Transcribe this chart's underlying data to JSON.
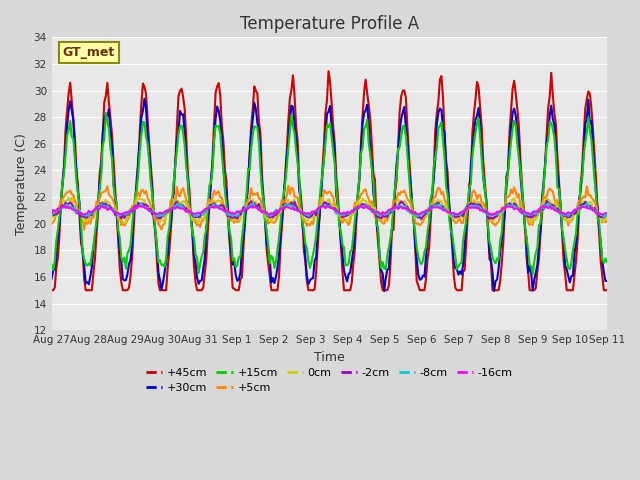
{
  "title": "Temperature Profile A",
  "xlabel": "Time",
  "ylabel": "Temperature (C)",
  "ylim": [
    12,
    34
  ],
  "yticks": [
    12,
    14,
    16,
    18,
    20,
    22,
    24,
    26,
    28,
    30,
    32,
    34
  ],
  "date_labels": [
    "Aug 27",
    "Aug 28",
    "Aug 29",
    "Aug 30",
    "Aug 31",
    "Sep 1",
    "Sep 2",
    "Sep 3",
    "Sep 4",
    "Sep 5",
    "Sep 6",
    "Sep 7",
    "Sep 8",
    "Sep 9",
    "Sep 10",
    "Sep 11"
  ],
  "n_days": 15,
  "series": {
    "+45cm": {
      "color": "#cc0000",
      "lw": 1.5
    },
    "+30cm": {
      "color": "#0000cc",
      "lw": 1.5
    },
    "+15cm": {
      "color": "#00cc00",
      "lw": 1.5
    },
    "+5cm": {
      "color": "#ff8800",
      "lw": 1.5
    },
    "0cm": {
      "color": "#cccc00",
      "lw": 1.5
    },
    "-2cm": {
      "color": "#9900cc",
      "lw": 1.5
    },
    "-8cm": {
      "color": "#00cccc",
      "lw": 1.5
    },
    "-16cm": {
      "color": "#ff00ff",
      "lw": 1.5
    }
  },
  "annotation_text": "GT_met",
  "annotation_bg": "#ffffaa",
  "annotation_border": "#888800"
}
